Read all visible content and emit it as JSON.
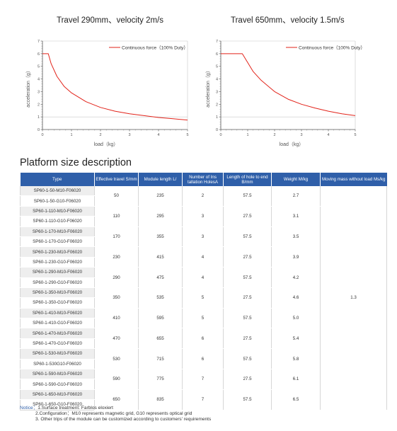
{
  "charts": [
    {
      "title": "Travel 290mm、velocity 2m/s",
      "legend": "Continuous force（100% Duty）",
      "xlabel": "load（kg）",
      "ylabel": "acceleration（g）",
      "color": "#e2231a"
    },
    {
      "title": "Travel 650mm、velocity 1.5m/s",
      "legend": "Continuous force（100% Duty）",
      "xlabel": "load（kg）",
      "ylabel": "acceleration（g）",
      "color": "#e2231a"
    }
  ],
  "chart_data": [
    {
      "type": "line",
      "title": "Travel 290mm、velocity 2m/s",
      "xlabel": "load（kg）",
      "ylabel": "acceleration（g）",
      "xlim": [
        0,
        5
      ],
      "ylim": [
        0,
        7
      ],
      "xticks": [
        "0",
        "1",
        "2",
        "3",
        "4",
        "5"
      ],
      "yticks": [
        "0",
        "1",
        "2",
        "3",
        "4",
        "5",
        "6",
        "7"
      ],
      "grid": false,
      "legend_position": "top-right",
      "series": [
        {
          "name": "Continuous force（100% Duty）",
          "x": [
            0,
            0.2,
            0.3,
            0.5,
            0.75,
            1.0,
            1.5,
            2.0,
            2.5,
            3.0,
            3.5,
            4.0,
            4.5,
            5.0
          ],
          "y": [
            6.0,
            6.0,
            5.2,
            4.2,
            3.4,
            2.9,
            2.2,
            1.75,
            1.45,
            1.25,
            1.1,
            0.95,
            0.85,
            0.75
          ]
        }
      ]
    },
    {
      "type": "line",
      "title": "Travel 650mm、velocity 1.5m/s",
      "xlabel": "load（kg）",
      "ylabel": "acceleration（g）",
      "xlim": [
        0,
        5
      ],
      "ylim": [
        0,
        7
      ],
      "xticks": [
        "0",
        "1",
        "2",
        "3",
        "4",
        "5"
      ],
      "yticks": [
        "0",
        "1",
        "2",
        "3",
        "4",
        "5",
        "6",
        "7"
      ],
      "grid": false,
      "legend_position": "top-right",
      "series": [
        {
          "name": "Continuous force（100% Duty）",
          "x": [
            0,
            0.5,
            0.8,
            1.0,
            1.2,
            1.5,
            2.0,
            2.5,
            3.0,
            3.5,
            4.0,
            4.5,
            5.0
          ],
          "y": [
            6.0,
            6.0,
            6.0,
            5.3,
            4.6,
            3.9,
            3.0,
            2.4,
            2.0,
            1.7,
            1.45,
            1.25,
            1.1
          ]
        }
      ]
    }
  ],
  "section_title": "Platform size description",
  "table": {
    "headers": [
      "Type",
      "Effective travel S/mm",
      "Module length L/",
      "Number of Ins tallation HolesA",
      "Length of hole to end B/mm",
      "Weight M/kg",
      "Moving mass without load Ms/kg"
    ],
    "moving_mass": "1.3",
    "groups": [
      {
        "types": [
          "SP60-1-50-M10-F06020",
          "SP60-1-50-G10-F06020"
        ],
        "travel": "50",
        "length": "235",
        "holes": "2",
        "hole_end": "57.5",
        "weight": "2.7"
      },
      {
        "types": [
          "SP60-1-110-M10-F06020",
          "SP60-1-110-G10-F06020"
        ],
        "travel": "110",
        "length": "295",
        "holes": "3",
        "hole_end": "27.5",
        "weight": "3.1"
      },
      {
        "types": [
          "SP60-1-170-M10-F06020",
          "SP60-1-170-G10-F06020"
        ],
        "travel": "170",
        "length": "355",
        "holes": "3",
        "hole_end": "57.5",
        "weight": "3.5"
      },
      {
        "types": [
          "SP60-1-230-M10-F06020",
          "SP60-1-230-G10-F06020"
        ],
        "travel": "230",
        "length": "415",
        "holes": "4",
        "hole_end": "27.5",
        "weight": "3.9"
      },
      {
        "types": [
          "SP60-1-290-M10-F06020",
          "SP60-1-290-G10-F06020"
        ],
        "travel": "290",
        "length": "475",
        "holes": "4",
        "hole_end": "57.5",
        "weight": "4.2"
      },
      {
        "types": [
          "SP60-1-350-M10-F06020",
          "SP60-1-350-G10-F06020"
        ],
        "travel": "350",
        "length": "535",
        "holes": "5",
        "hole_end": "27.5",
        "weight": "4.6"
      },
      {
        "types": [
          "SP60-1-410-M10-F06020",
          "SP60-1-410-G10-F06020"
        ],
        "travel": "410",
        "length": "595",
        "holes": "5",
        "hole_end": "57.5",
        "weight": "5.0"
      },
      {
        "types": [
          "SP60-1-470-M10-F06020",
          "SP60-1-470-G10-F06020"
        ],
        "travel": "470",
        "length": "655",
        "holes": "6",
        "hole_end": "27.5",
        "weight": "5.4"
      },
      {
        "types": [
          "SP60-1-530-M10-F06020",
          "SP60-1-530G10-F06020"
        ],
        "travel": "530",
        "length": "715",
        "holes": "6",
        "hole_end": "57.5",
        "weight": "5.8"
      },
      {
        "types": [
          "SP60-1-590-M10-F06020",
          "SP60-1-590-G10-F06020"
        ],
        "travel": "590",
        "length": "775",
        "holes": "7",
        "hole_end": "27.5",
        "weight": "6.1"
      },
      {
        "types": [
          "SP60-1-650-M10-F06020",
          "SP60-1-650-G10-F06020"
        ],
        "travel": "650",
        "length": "835",
        "holes": "7",
        "hole_end": "57.5",
        "weight": "6.5"
      }
    ]
  },
  "notes": {
    "label": "Notice：",
    "lines": [
      "1.Surface treatment: Farblos eloxiert",
      "2.Configuration：M10 represents magnetic grid, G10 represents optical grid",
      "3. Other trips of the module can be customized according to customers' requirements"
    ]
  }
}
